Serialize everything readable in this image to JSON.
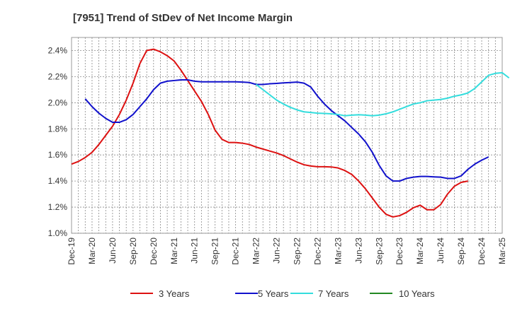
{
  "chart_data": {
    "type": "line",
    "title": "[7951]  Trend of StDev of Net Income Margin",
    "xlabel": "",
    "ylabel": "",
    "x_ticks": [
      "Dec-19",
      "Mar-20",
      "Jun-20",
      "Sep-20",
      "Dec-20",
      "Mar-21",
      "Jun-21",
      "Sep-21",
      "Dec-21",
      "Mar-22",
      "Jun-22",
      "Sep-22",
      "Dec-22",
      "Mar-23",
      "Jun-23",
      "Sep-23",
      "Dec-23",
      "Mar-24",
      "Jun-24",
      "Sep-24",
      "Dec-24",
      "Mar-25"
    ],
    "y_ticks": [
      "1.0%",
      "1.2%",
      "1.4%",
      "1.6%",
      "1.8%",
      "2.0%",
      "2.2%",
      "2.4%"
    ],
    "ylim": [
      1.0,
      2.5
    ],
    "x_range_months": [
      0,
      63
    ],
    "grid": true,
    "legend_position": "bottom",
    "series": [
      {
        "name": "3 Years",
        "color": "#dd1111",
        "points": [
          [
            0,
            1.53
          ],
          [
            1,
            1.55
          ],
          [
            2,
            1.58
          ],
          [
            3,
            1.62
          ],
          [
            4,
            1.68
          ],
          [
            5,
            1.75
          ],
          [
            6,
            1.82
          ],
          [
            7,
            1.91
          ],
          [
            8,
            2.02
          ],
          [
            9,
            2.15
          ],
          [
            10,
            2.3
          ],
          [
            11,
            2.4
          ],
          [
            12,
            2.41
          ],
          [
            13,
            2.39
          ],
          [
            14,
            2.36
          ],
          [
            15,
            2.32
          ],
          [
            16,
            2.25
          ],
          [
            17,
            2.17
          ],
          [
            18,
            2.09
          ],
          [
            19,
            2.01
          ],
          [
            20,
            1.91
          ],
          [
            21,
            1.79
          ],
          [
            22,
            1.72
          ],
          [
            23,
            1.695
          ],
          [
            24,
            1.695
          ],
          [
            25,
            1.69
          ],
          [
            26,
            1.68
          ],
          [
            27,
            1.66
          ],
          [
            28,
            1.645
          ],
          [
            29,
            1.63
          ],
          [
            30,
            1.615
          ],
          [
            31,
            1.595
          ],
          [
            32,
            1.57
          ],
          [
            33,
            1.545
          ],
          [
            34,
            1.525
          ],
          [
            35,
            1.515
          ],
          [
            36,
            1.51
          ],
          [
            37,
            1.51
          ],
          [
            38,
            1.508
          ],
          [
            39,
            1.5
          ],
          [
            40,
            1.48
          ],
          [
            41,
            1.45
          ],
          [
            42,
            1.4
          ],
          [
            43,
            1.34
          ],
          [
            44,
            1.27
          ],
          [
            45,
            1.2
          ],
          [
            46,
            1.145
          ],
          [
            47,
            1.125
          ],
          [
            48,
            1.135
          ],
          [
            49,
            1.16
          ],
          [
            50,
            1.195
          ],
          [
            51,
            1.215
          ],
          [
            52,
            1.18
          ],
          [
            53,
            1.18
          ],
          [
            54,
            1.22
          ],
          [
            55,
            1.3
          ],
          [
            56,
            1.36
          ],
          [
            57,
            1.39
          ],
          [
            58,
            1.4
          ]
        ]
      },
      {
        "name": "5 Years",
        "color": "#1111cc",
        "points": [
          [
            2,
            2.03
          ],
          [
            3,
            1.97
          ],
          [
            4,
            1.92
          ],
          [
            5,
            1.88
          ],
          [
            6,
            1.85
          ],
          [
            7,
            1.85
          ],
          [
            8,
            1.87
          ],
          [
            9,
            1.91
          ],
          [
            10,
            1.97
          ],
          [
            11,
            2.03
          ],
          [
            12,
            2.1
          ],
          [
            13,
            2.15
          ],
          [
            14,
            2.165
          ],
          [
            15,
            2.17
          ],
          [
            16,
            2.175
          ],
          [
            17,
            2.175
          ],
          [
            18,
            2.165
          ],
          [
            19,
            2.16
          ],
          [
            20,
            2.16
          ],
          [
            21,
            2.16
          ],
          [
            22,
            2.16
          ],
          [
            23,
            2.16
          ],
          [
            24,
            2.16
          ],
          [
            25,
            2.158
          ],
          [
            26,
            2.155
          ],
          [
            27,
            2.14
          ],
          [
            28,
            2.14
          ],
          [
            29,
            2.145
          ],
          [
            30,
            2.148
          ],
          [
            31,
            2.152
          ],
          [
            32,
            2.155
          ],
          [
            33,
            2.158
          ],
          [
            34,
            2.15
          ],
          [
            35,
            2.12
          ],
          [
            36,
            2.05
          ],
          [
            37,
            1.99
          ],
          [
            38,
            1.94
          ],
          [
            39,
            1.9
          ],
          [
            40,
            1.86
          ],
          [
            41,
            1.81
          ],
          [
            42,
            1.76
          ],
          [
            43,
            1.7
          ],
          [
            44,
            1.62
          ],
          [
            45,
            1.52
          ],
          [
            46,
            1.44
          ],
          [
            47,
            1.4
          ],
          [
            48,
            1.4
          ],
          [
            49,
            1.42
          ],
          [
            50,
            1.43
          ],
          [
            51,
            1.435
          ],
          [
            52,
            1.435
          ],
          [
            53,
            1.432
          ],
          [
            54,
            1.43
          ],
          [
            55,
            1.42
          ],
          [
            56,
            1.42
          ],
          [
            57,
            1.44
          ],
          [
            58,
            1.49
          ],
          [
            59,
            1.53
          ],
          [
            60,
            1.56
          ],
          [
            61,
            1.585
          ]
        ]
      },
      {
        "name": "7 Years",
        "color": "#33dddd",
        "points": [
          [
            27,
            2.14
          ],
          [
            28,
            2.1
          ],
          [
            29,
            2.06
          ],
          [
            30,
            2.02
          ],
          [
            31,
            1.99
          ],
          [
            32,
            1.965
          ],
          [
            33,
            1.945
          ],
          [
            34,
            1.93
          ],
          [
            35,
            1.925
          ],
          [
            36,
            1.92
          ],
          [
            37,
            1.918
          ],
          [
            38,
            1.915
          ],
          [
            39,
            1.91
          ],
          [
            40,
            1.9
          ],
          [
            41,
            1.905
          ],
          [
            42,
            1.908
          ],
          [
            43,
            1.905
          ],
          [
            44,
            1.9
          ],
          [
            45,
            1.905
          ],
          [
            46,
            1.915
          ],
          [
            47,
            1.93
          ],
          [
            48,
            1.95
          ],
          [
            49,
            1.97
          ],
          [
            50,
            1.99
          ],
          [
            51,
            2.0
          ],
          [
            52,
            2.015
          ],
          [
            53,
            2.02
          ],
          [
            54,
            2.025
          ],
          [
            55,
            2.035
          ],
          [
            56,
            2.05
          ],
          [
            57,
            2.06
          ],
          [
            58,
            2.075
          ],
          [
            59,
            2.11
          ],
          [
            60,
            2.16
          ],
          [
            61,
            2.21
          ],
          [
            62,
            2.225
          ],
          [
            63,
            2.23
          ],
          [
            64,
            2.19
          ]
        ]
      },
      {
        "name": "10 Years",
        "color": "#228822",
        "points": []
      }
    ]
  }
}
